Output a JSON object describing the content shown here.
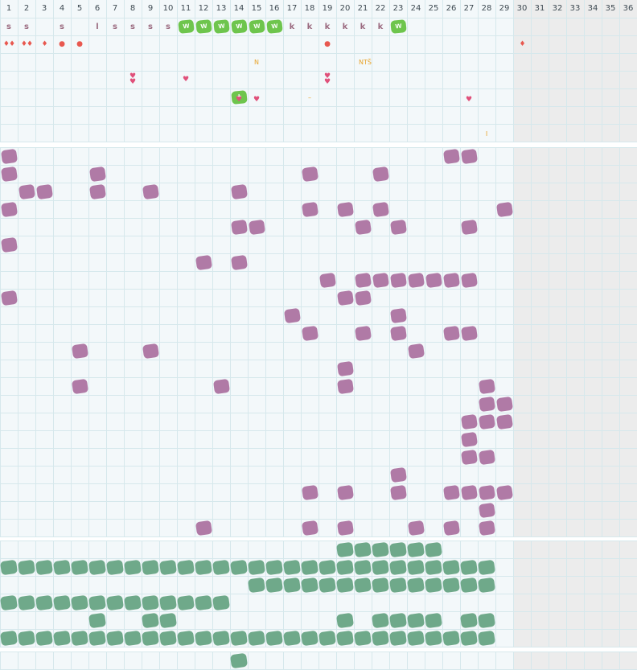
{
  "columns": [
    "1",
    "2",
    "3",
    "4",
    "5",
    "6",
    "7",
    "8",
    "9",
    "10",
    "11",
    "12",
    "13",
    "14",
    "15",
    "16",
    "17",
    "18",
    "19",
    "20",
    "21",
    "22",
    "23",
    "24",
    "25",
    "26",
    "27",
    "28",
    "29",
    "30",
    "31",
    "32",
    "33",
    "34",
    "35",
    "36"
  ],
  "colors": {
    "purple": "#b07aa6",
    "teal": "#6fa98a",
    "green": "#6ec54d",
    "red": "#e8584f",
    "pink": "#e0507a",
    "orange": "#e8a32a",
    "letter": "#9b6b80",
    "grid": "#d6e8ec",
    "bg": "#f3f8fa",
    "disabled": "#ececec"
  },
  "top": {
    "letters": [
      {
        "col": 1,
        "text": "s"
      },
      {
        "col": 2,
        "text": "s"
      },
      {
        "col": 4,
        "text": "s"
      },
      {
        "col": 6,
        "text": "l"
      },
      {
        "col": 7,
        "text": "s"
      },
      {
        "col": 8,
        "text": "s"
      },
      {
        "col": 9,
        "text": "s"
      },
      {
        "col": 10,
        "text": "s"
      },
      {
        "col": 17,
        "text": "k"
      },
      {
        "col": 18,
        "text": "k"
      },
      {
        "col": 19,
        "text": "k"
      },
      {
        "col": 20,
        "text": "k"
      },
      {
        "col": 21,
        "text": "k"
      },
      {
        "col": 22,
        "text": "k"
      }
    ],
    "green_badges": [
      {
        "row": 0,
        "col": 11,
        "text": "w"
      },
      {
        "row": 0,
        "col": 12,
        "text": "w"
      },
      {
        "row": 0,
        "col": 13,
        "text": "w"
      },
      {
        "row": 0,
        "col": 14,
        "text": "w"
      },
      {
        "row": 0,
        "col": 15,
        "text": "w"
      },
      {
        "row": 0,
        "col": 16,
        "text": "w"
      },
      {
        "row": 0,
        "col": 23,
        "text": "w"
      },
      {
        "row": 4,
        "col": 14,
        "text": "+"
      }
    ],
    "drops": [
      {
        "row": 1,
        "col": 1,
        "text": "♦♦"
      },
      {
        "row": 1,
        "col": 2,
        "text": "♦♦"
      },
      {
        "row": 1,
        "col": 3,
        "text": "♦"
      },
      {
        "row": 1,
        "col": 30,
        "text": "♦"
      }
    ],
    "dots": [
      {
        "row": 1,
        "col": 4,
        "text": "●"
      },
      {
        "row": 1,
        "col": 5,
        "text": "●"
      },
      {
        "row": 1,
        "col": 19,
        "text": "●"
      }
    ],
    "hearts": [
      {
        "row": 3,
        "col": 11,
        "text": "♥"
      },
      {
        "row": 3,
        "col": 8,
        "text": "♥\n♥"
      },
      {
        "row": 3,
        "col": 19,
        "text": "♥\n♥"
      },
      {
        "row": 4,
        "col": 14,
        "text": "♥",
        "shift": -1
      },
      {
        "row": 4,
        "col": 15,
        "text": "♥",
        "shift": -1
      },
      {
        "row": 4,
        "col": 27,
        "text": "♥",
        "shift": -1
      }
    ],
    "orange_marks": [
      {
        "row": 2,
        "col": 15,
        "text": "N"
      },
      {
        "row": 2,
        "col": 21,
        "text": "NTŠ"
      },
      {
        "row": 4,
        "col": 18,
        "text": "–"
      },
      {
        "row": 6,
        "col": 28,
        "text": "I"
      }
    ]
  },
  "purple_cells": [
    [
      0,
      1
    ],
    [
      0,
      26
    ],
    [
      0,
      27
    ],
    [
      1,
      1
    ],
    [
      1,
      6
    ],
    [
      1,
      18
    ],
    [
      1,
      22
    ],
    [
      2,
      2
    ],
    [
      2,
      3
    ],
    [
      2,
      6
    ],
    [
      2,
      9
    ],
    [
      2,
      14
    ],
    [
      3,
      1
    ],
    [
      3,
      18
    ],
    [
      3,
      20
    ],
    [
      3,
      22
    ],
    [
      3,
      29
    ],
    [
      4,
      14
    ],
    [
      4,
      15
    ],
    [
      4,
      21
    ],
    [
      4,
      23
    ],
    [
      4,
      27
    ],
    [
      5,
      1
    ],
    [
      6,
      12
    ],
    [
      6,
      14
    ],
    [
      7,
      19
    ],
    [
      7,
      21
    ],
    [
      7,
      22
    ],
    [
      7,
      23
    ],
    [
      7,
      24
    ],
    [
      7,
      25
    ],
    [
      7,
      26
    ],
    [
      7,
      27
    ],
    [
      8,
      1
    ],
    [
      8,
      20
    ],
    [
      8,
      21
    ],
    [
      9,
      17
    ],
    [
      9,
      23
    ],
    [
      10,
      18
    ],
    [
      10,
      21
    ],
    [
      10,
      23
    ],
    [
      10,
      26
    ],
    [
      10,
      27
    ],
    [
      11,
      5
    ],
    [
      11,
      9
    ],
    [
      11,
      24
    ],
    [
      12,
      20
    ],
    [
      13,
      5
    ],
    [
      13,
      13
    ],
    [
      13,
      20
    ],
    [
      13,
      28
    ],
    [
      14,
      28
    ],
    [
      14,
      29
    ],
    [
      15,
      27
    ],
    [
      15,
      28
    ],
    [
      15,
      29
    ],
    [
      16,
      27
    ],
    [
      17,
      27
    ],
    [
      17,
      28
    ],
    [
      18,
      23
    ],
    [
      19,
      18
    ],
    [
      19,
      20
    ],
    [
      19,
      23
    ],
    [
      19,
      26
    ],
    [
      19,
      27
    ],
    [
      19,
      28
    ],
    [
      19,
      29
    ],
    [
      20,
      28
    ],
    [
      21,
      12
    ],
    [
      21,
      18
    ],
    [
      21,
      20
    ],
    [
      21,
      24
    ],
    [
      21,
      26
    ],
    [
      21,
      28
    ]
  ],
  "teal_cells": [
    [
      0,
      20
    ],
    [
      0,
      21
    ],
    [
      0,
      22
    ],
    [
      0,
      23
    ],
    [
      0,
      24
    ],
    [
      0,
      25
    ],
    [
      1,
      1
    ],
    [
      1,
      2
    ],
    [
      1,
      3
    ],
    [
      1,
      4
    ],
    [
      1,
      5
    ],
    [
      1,
      6
    ],
    [
      1,
      7
    ],
    [
      1,
      8
    ],
    [
      1,
      9
    ],
    [
      1,
      10
    ],
    [
      1,
      11
    ],
    [
      1,
      12
    ],
    [
      1,
      13
    ],
    [
      1,
      14
    ],
    [
      1,
      15
    ],
    [
      1,
      16
    ],
    [
      1,
      17
    ],
    [
      1,
      18
    ],
    [
      1,
      19
    ],
    [
      1,
      20
    ],
    [
      1,
      21
    ],
    [
      1,
      22
    ],
    [
      1,
      23
    ],
    [
      1,
      24
    ],
    [
      1,
      25
    ],
    [
      1,
      26
    ],
    [
      1,
      27
    ],
    [
      1,
      28
    ],
    [
      2,
      15
    ],
    [
      2,
      16
    ],
    [
      2,
      17
    ],
    [
      2,
      18
    ],
    [
      2,
      19
    ],
    [
      2,
      20
    ],
    [
      2,
      21
    ],
    [
      2,
      22
    ],
    [
      2,
      23
    ],
    [
      2,
      24
    ],
    [
      2,
      25
    ],
    [
      2,
      26
    ],
    [
      2,
      27
    ],
    [
      2,
      28
    ],
    [
      3,
      1
    ],
    [
      3,
      2
    ],
    [
      3,
      3
    ],
    [
      3,
      4
    ],
    [
      3,
      5
    ],
    [
      3,
      6
    ],
    [
      3,
      7
    ],
    [
      3,
      8
    ],
    [
      3,
      9
    ],
    [
      3,
      10
    ],
    [
      3,
      11
    ],
    [
      3,
      12
    ],
    [
      3,
      13
    ],
    [
      4,
      6
    ],
    [
      4,
      9
    ],
    [
      4,
      10
    ],
    [
      4,
      20
    ],
    [
      4,
      22
    ],
    [
      4,
      23
    ],
    [
      4,
      24
    ],
    [
      4,
      25
    ],
    [
      4,
      27
    ],
    [
      4,
      28
    ],
    [
      5,
      1
    ],
    [
      5,
      2
    ],
    [
      5,
      3
    ],
    [
      5,
      4
    ],
    [
      5,
      5
    ],
    [
      5,
      6
    ],
    [
      5,
      7
    ],
    [
      5,
      8
    ],
    [
      5,
      9
    ],
    [
      5,
      10
    ],
    [
      5,
      11
    ],
    [
      5,
      12
    ],
    [
      5,
      13
    ],
    [
      5,
      14
    ],
    [
      5,
      15
    ],
    [
      5,
      16
    ],
    [
      5,
      17
    ],
    [
      5,
      18
    ],
    [
      5,
      19
    ],
    [
      5,
      20
    ],
    [
      5,
      21
    ],
    [
      5,
      22
    ],
    [
      5,
      23
    ],
    [
      5,
      24
    ],
    [
      5,
      25
    ],
    [
      5,
      26
    ],
    [
      5,
      27
    ],
    [
      5,
      28
    ],
    [
      7,
      14
    ]
  ]
}
